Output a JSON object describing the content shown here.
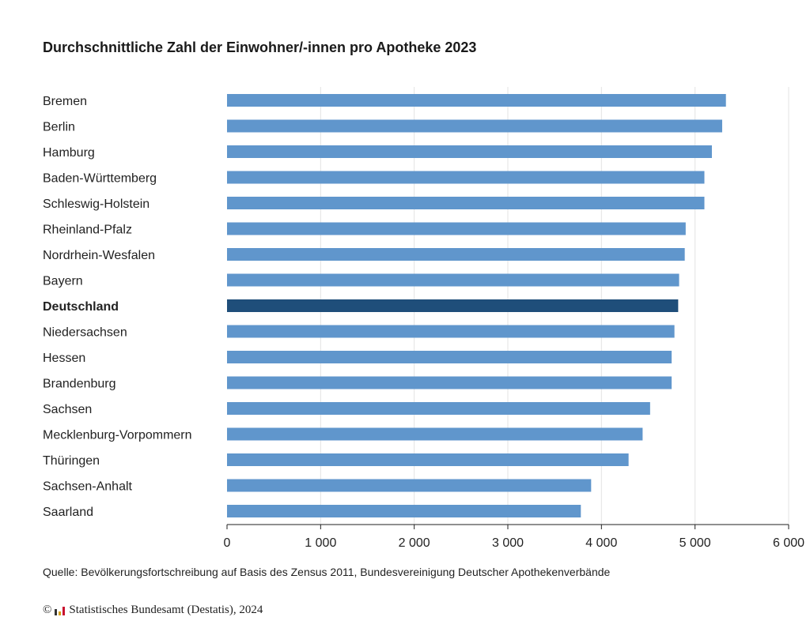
{
  "title": "Durchschnittliche Zahl der Einwohner/-innen pro Apotheke 2023",
  "source": "Quelle: Bevölkerungsfortschreibung auf Basis des Zensus 2011, Bundesvereinigung Deutscher Apothekenverbände",
  "copyright": {
    "symbol": "©",
    "text": "Statistisches Bundesamt (Destatis), 2024",
    "logo_icon": "destatis-logo-icon"
  },
  "colors": {
    "bar": "#6096cc",
    "highlight_bar": "#1f4e7a",
    "grid": "#e3e3e3",
    "axis": "#222222"
  },
  "chart_data": {
    "type": "bar",
    "orientation": "horizontal",
    "title": "Durchschnittliche Zahl der Einwohner/-innen pro Apotheke 2023",
    "categories": [
      "Bremen",
      "Berlin",
      "Hamburg",
      "Baden-Württemberg",
      "Schleswig-Holstein",
      "Rheinland-Pfalz",
      "Nordrhein-Wesfalen",
      "Bayern",
      "Deutschland",
      "Niedersachsen",
      "Hessen",
      "Brandenburg",
      "Sachsen",
      "Mecklenburg-Vorpommern",
      "Thüringen",
      "Sachsen-Anhalt",
      "Saarland"
    ],
    "values": [
      5330,
      5290,
      5180,
      5100,
      5100,
      4900,
      4890,
      4830,
      4820,
      4780,
      4750,
      4750,
      4520,
      4440,
      4290,
      3890,
      3780
    ],
    "highlight": "Deutschland",
    "xlim": [
      0,
      6000
    ],
    "xticks": [
      0,
      1000,
      2000,
      3000,
      4000,
      5000,
      6000
    ],
    "xtick_labels": [
      "0",
      "1 000",
      "2 000",
      "3 000",
      "4 000",
      "5 000",
      "6 000"
    ],
    "grid": true,
    "legend": false
  }
}
